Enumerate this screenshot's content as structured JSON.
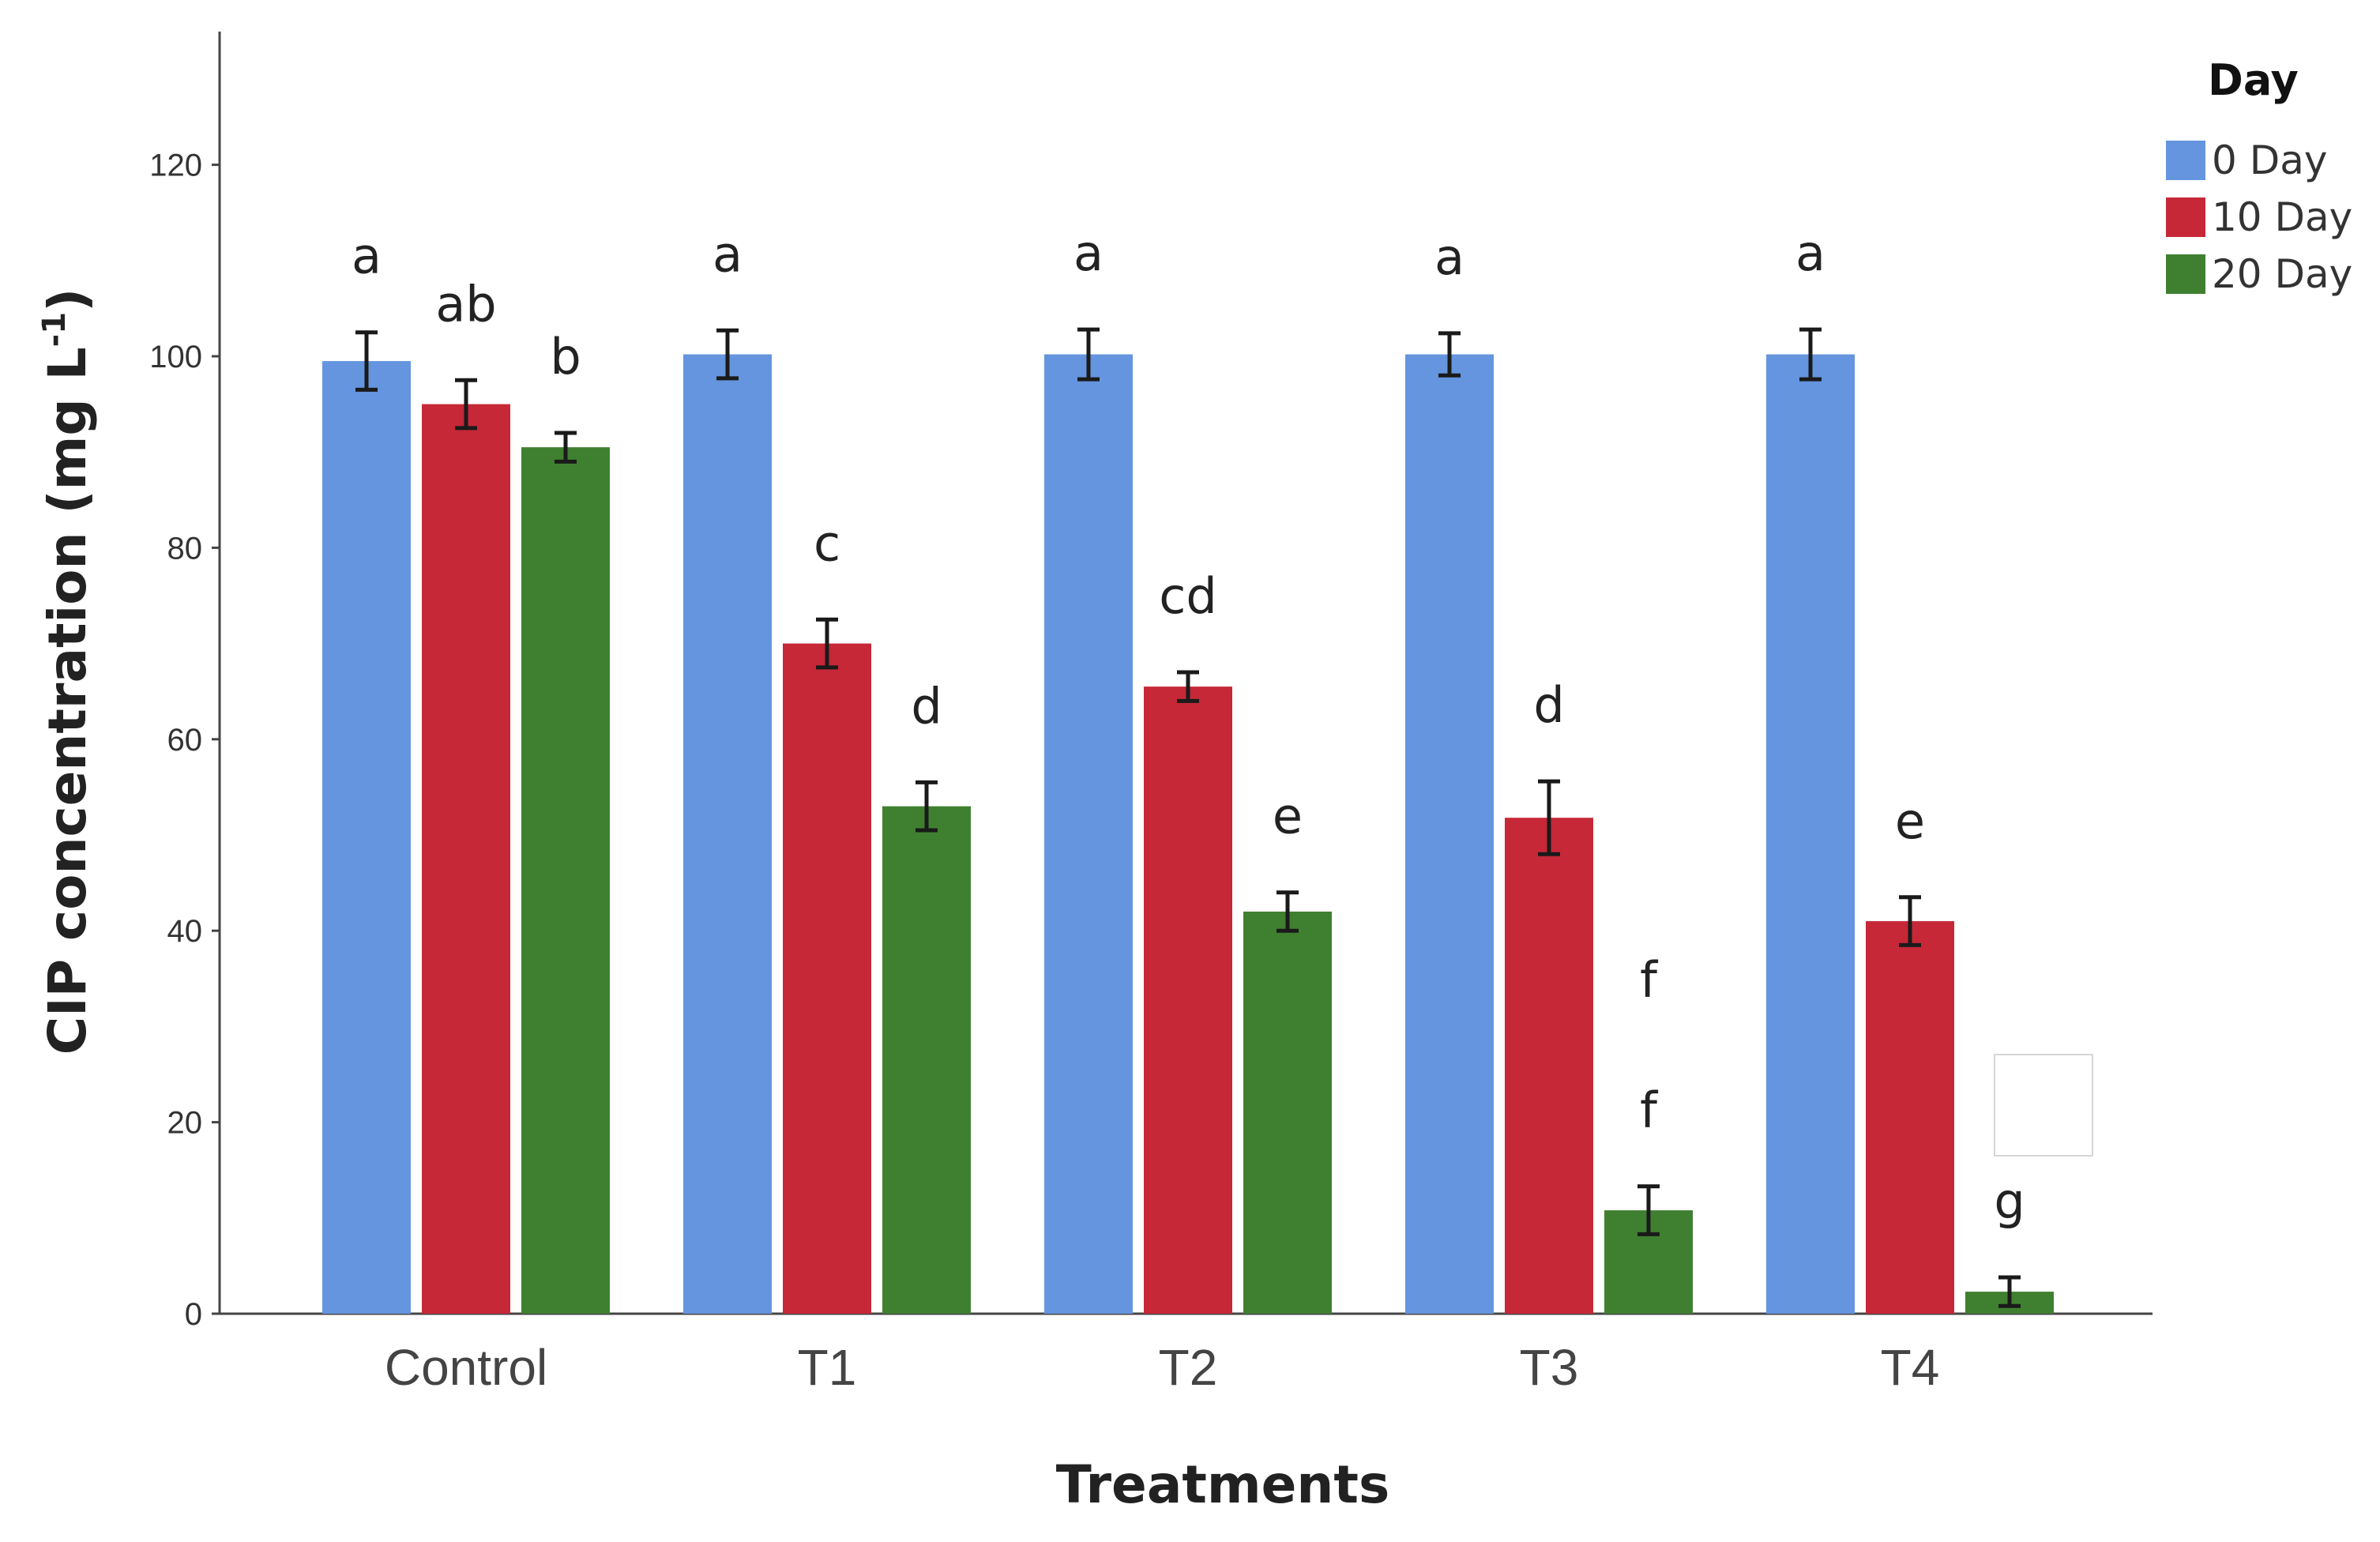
{
  "chart_data": {
    "type": "bar",
    "title": "",
    "xlabel": "Treatments",
    "ylabel_main": "CIP concentration  (mg L",
    "ylabel_sup": "-1",
    "ylabel_close": ")",
    "ylim": [
      0,
      135
    ],
    "yticks": [
      0,
      20,
      40,
      60,
      80,
      100,
      120
    ],
    "yticks_text": [
      "0",
      "20",
      "40",
      "60",
      "80",
      "100",
      "120"
    ],
    "categories": [
      "Control",
      "T1",
      "T2",
      "T3",
      "T4"
    ],
    "legend_title": "Day",
    "legend_position": "top-right",
    "series": [
      {
        "name": "0 Day",
        "color": "#6495de",
        "values": [
          99.5,
          100.2,
          100.2,
          100.2,
          100.2
        ],
        "errors": [
          3.0,
          2.5,
          2.6,
          2.2,
          2.6
        ],
        "labels": [
          "a",
          "a",
          "a",
          "a",
          "a"
        ]
      },
      {
        "name": "10 Day",
        "color": "#c62838",
        "values": [
          95.0,
          70.0,
          65.5,
          51.8,
          41.0
        ],
        "errors": [
          2.5,
          2.5,
          1.5,
          3.8,
          2.5
        ],
        "labels": [
          "ab",
          "c",
          "cd",
          "d",
          "e"
        ]
      },
      {
        "name": "20 Day",
        "color": "#3f8030",
        "values": [
          90.5,
          53.0,
          42.0,
          10.8,
          2.3
        ],
        "errors": [
          1.5,
          2.5,
          2.0,
          2.5,
          1.5
        ],
        "labels": [
          "b",
          "d",
          "e",
          "f",
          "g"
        ]
      }
    ],
    "extra_annotations": [
      {
        "text": "f",
        "category": "T3",
        "series": "20 Day"
      }
    ]
  }
}
